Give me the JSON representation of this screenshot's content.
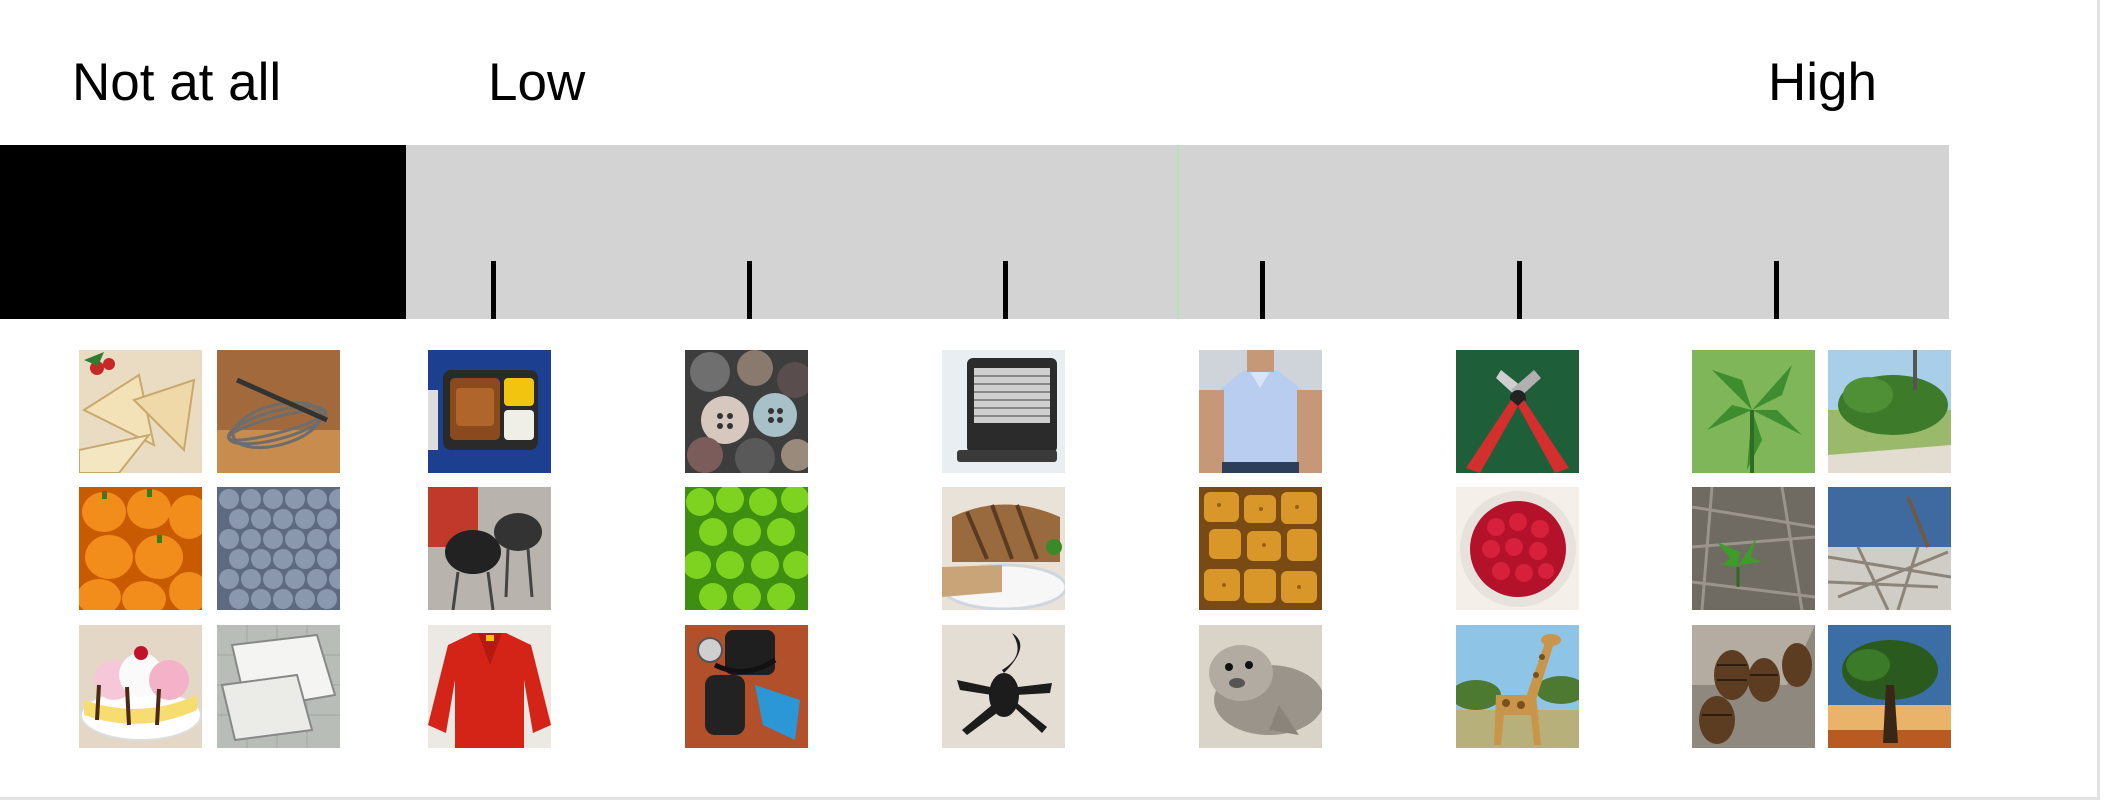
{
  "scale": {
    "label_not_at_all": "Not at all",
    "label_low": "Low",
    "label_high": "High",
    "tick_count": 6,
    "colors": {
      "not_at_all_zone": "#000000",
      "bar": "#d3d3d3",
      "center_line": "#b7e0b3",
      "tick": "#000000"
    }
  },
  "images": [
    {
      "icon": "shortbread-cookies-icon"
    },
    {
      "icon": "whisk-icon"
    },
    {
      "icon": "tv-dinner-tray-icon"
    },
    {
      "icon": "buttons-pile-icon"
    },
    {
      "icon": "space-heater-icon"
    },
    {
      "icon": "polo-shirt-man-icon"
    },
    {
      "icon": "wire-cutters-icon"
    },
    {
      "icon": "plant-leaves-icon"
    },
    {
      "icon": "hedge-bush-icon"
    },
    {
      "icon": "orange-peppers-icon"
    },
    {
      "icon": "blueberries-icon"
    },
    {
      "icon": "charcoal-grills-icon"
    },
    {
      "icon": "green-peas-icon"
    },
    {
      "icon": "grilled-sandwich-icon"
    },
    {
      "icon": "sponges-icon"
    },
    {
      "icon": "raspberries-bowl-icon"
    },
    {
      "icon": "seedling-icon"
    },
    {
      "icon": "bird-nest-icon"
    },
    {
      "icon": "banana-split-icon"
    },
    {
      "icon": "notepad-icon"
    },
    {
      "icon": "red-sweater-icon"
    },
    {
      "icon": "scuba-gear-icon"
    },
    {
      "icon": "scorpion-icon"
    },
    {
      "icon": "seal-icon"
    },
    {
      "icon": "giraffe-icon"
    },
    {
      "icon": "pinecones-icon"
    },
    {
      "icon": "lone-tree-icon"
    }
  ]
}
